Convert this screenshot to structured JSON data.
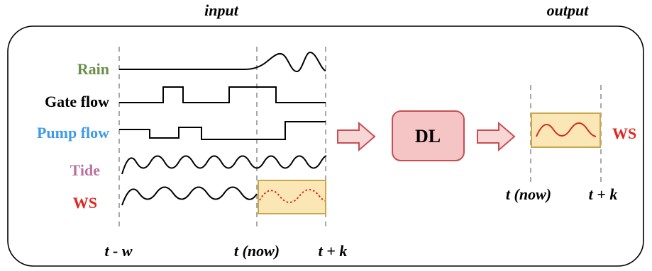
{
  "headers": {
    "input": "input",
    "output": "output"
  },
  "signals": [
    {
      "key": "rain",
      "label": "Rain",
      "color": "#6a8f4a"
    },
    {
      "key": "gate",
      "label": "Gate flow",
      "color": "#000000"
    },
    {
      "key": "pump",
      "label": "Pump flow",
      "color": "#3d9bea"
    },
    {
      "key": "tide",
      "label": "Tide",
      "color": "#b9739e"
    },
    {
      "key": "ws",
      "label": "WS",
      "color": "#e0261f"
    }
  ],
  "time_labels": {
    "start": "t - w",
    "now": "t (now)",
    "end": "t + k"
  },
  "model": {
    "label": "DL",
    "fill": "#f5c5c6",
    "stroke": "#c94d52"
  },
  "output": {
    "label": "WS",
    "label_color": "#e0261f",
    "now": "t (now)",
    "end": "t + k"
  },
  "colors": {
    "forecast_box_fill": "#fbe6b5",
    "forecast_box_stroke": "#c9a84c",
    "arrow_fill": "#f7d6d6",
    "arrow_stroke": "#c94d52",
    "forecast_wave": "#d42a1e",
    "guide": "#a8a8a8"
  }
}
